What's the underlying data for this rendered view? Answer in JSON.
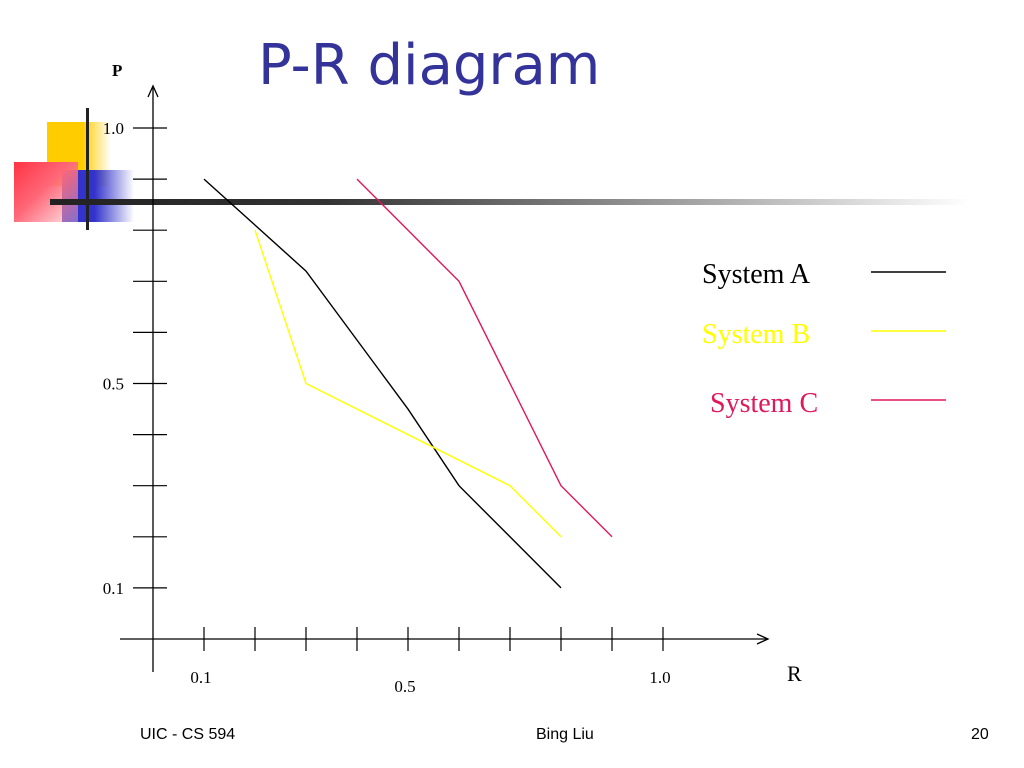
{
  "slide": {
    "title": "P-R diagram",
    "footer_left": "UIC - CS 594",
    "footer_center": "Bing Liu",
    "footer_right": "20"
  },
  "colors": {
    "title": "#333399",
    "system_a": "#000000",
    "system_b": "#ffff00",
    "system_c": "#e0185a"
  },
  "chart_data": {
    "type": "line",
    "title": "P-R diagram",
    "xlabel": "R",
    "ylabel": "P",
    "xlim": [
      0.1,
      1.1
    ],
    "ylim": [
      0.1,
      1.0
    ],
    "x_tick_labels": [
      {
        "label": "0.1",
        "value": 0.1
      },
      {
        "label": "0.5",
        "value": 0.5
      },
      {
        "label": "1.0",
        "value": 1.0
      }
    ],
    "y_tick_labels": [
      {
        "label": "1.0",
        "value": 1.0
      },
      {
        "label": "0.5",
        "value": 0.5
      },
      {
        "label": "0.1",
        "value": 0.1
      }
    ],
    "legend_position": "right",
    "series": [
      {
        "name": "System A",
        "color": "#000000",
        "points": [
          [
            0.1,
            0.9
          ],
          [
            0.3,
            0.72
          ],
          [
            0.5,
            0.45
          ],
          [
            0.6,
            0.3
          ],
          [
            0.8,
            0.1
          ]
        ]
      },
      {
        "name": "System B",
        "color": "#ffff00",
        "points": [
          [
            0.2,
            0.8
          ],
          [
            0.3,
            0.5
          ],
          [
            0.7,
            0.3
          ],
          [
            0.8,
            0.2
          ]
        ]
      },
      {
        "name": "System C",
        "color": "#e0185a",
        "points": [
          [
            0.4,
            0.9
          ],
          [
            0.6,
            0.7
          ],
          [
            0.8,
            0.3
          ],
          [
            0.9,
            0.2
          ]
        ]
      }
    ]
  }
}
